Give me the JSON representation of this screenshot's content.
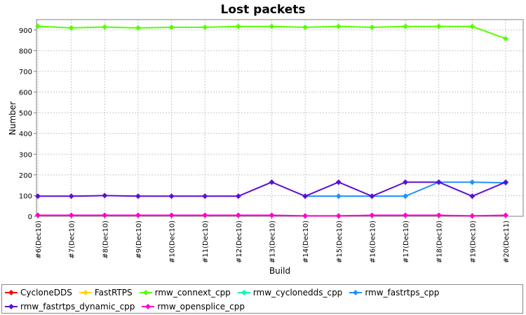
{
  "chart_data": {
    "type": "line",
    "title": "Lost packets",
    "xlabel": "Build",
    "ylabel": "Number",
    "ylim": [
      0,
      950
    ],
    "yticks": [
      0,
      100,
      200,
      300,
      400,
      500,
      600,
      700,
      800,
      900
    ],
    "grid": true,
    "legend_position": "bottom",
    "categories": [
      "#6(Dec10)",
      "#7(Dec10)",
      "#8(Dec10)",
      "#9(Dec10)",
      "#10(Dec10)",
      "#11(Dec10)",
      "#12(Dec10)",
      "#13(Dec10)",
      "#14(Dec10)",
      "#15(Dec10)",
      "#16(Dec10)",
      "#17(Dec10)",
      "#18(Dec10)",
      "#19(Dec10)",
      "#20(Dec11)"
    ],
    "series": [
      {
        "name": "CycloneDDS",
        "color": "#ff0000",
        "values": [
          null,
          null,
          null,
          null,
          null,
          null,
          null,
          null,
          null,
          null,
          null,
          null,
          null,
          null,
          null
        ]
      },
      {
        "name": "FastRTPS",
        "color": "#ffd700",
        "values": [
          null,
          null,
          null,
          null,
          null,
          null,
          null,
          null,
          null,
          null,
          null,
          null,
          null,
          null,
          null
        ]
      },
      {
        "name": "rmw_connext_cpp",
        "color": "#55ff00",
        "values": [
          918,
          910,
          914,
          910,
          913,
          913,
          917,
          917,
          913,
          917,
          913,
          917,
          917,
          917,
          858
        ]
      },
      {
        "name": "rmw_cyclonedds_cpp",
        "color": "#00ffaa",
        "values": [
          null,
          null,
          null,
          null,
          null,
          null,
          null,
          null,
          null,
          null,
          null,
          null,
          null,
          null,
          null
        ]
      },
      {
        "name": "rmw_fastrtps_cpp",
        "color": "#1e90ff",
        "values": [
          null,
          null,
          null,
          null,
          null,
          null,
          null,
          null,
          97,
          97,
          97,
          97,
          165,
          165,
          162
        ]
      },
      {
        "name": "rmw_fastrtps_dynamic_cpp",
        "color": "#5b0fd8",
        "values": [
          97,
          97,
          100,
          97,
          97,
          97,
          97,
          165,
          97,
          165,
          97,
          165,
          165,
          97,
          165
        ]
      },
      {
        "name": "rmw_opensplice_cpp",
        "color": "#ff00cc",
        "values": [
          5,
          5,
          5,
          5,
          5,
          5,
          5,
          5,
          2,
          2,
          5,
          5,
          5,
          2,
          5
        ]
      }
    ]
  }
}
